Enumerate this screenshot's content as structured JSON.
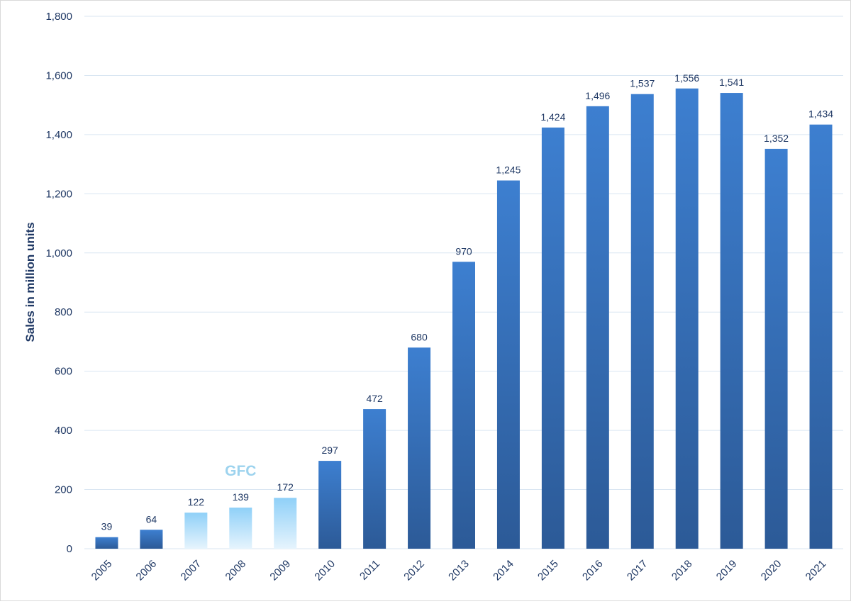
{
  "chart_data": {
    "type": "bar",
    "title": "",
    "xlabel": "",
    "ylabel": "Sales in million units",
    "categories": [
      "2005",
      "2006",
      "2007",
      "2008",
      "2009",
      "2010",
      "2011",
      "2012",
      "2013",
      "2014",
      "2015",
      "2016",
      "2017",
      "2018",
      "2019",
      "2020",
      "2021"
    ],
    "values": [
      39,
      64,
      122,
      139,
      172,
      297,
      472,
      680,
      970,
      1245,
      1424,
      1496,
      1537,
      1556,
      1541,
      1352,
      1434
    ],
    "value_labels": [
      "39",
      "64",
      "122",
      "139",
      "172",
      "297",
      "472",
      "680",
      "970",
      "1,245",
      "1,424",
      "1,496",
      "1,537",
      "1,556",
      "1,541",
      "1,352",
      "1,434"
    ],
    "ylim": [
      0,
      1800
    ],
    "y_ticks": [
      0,
      200,
      400,
      600,
      800,
      1000,
      1200,
      1400,
      1600,
      1800
    ],
    "y_tick_labels": [
      "0",
      "200",
      "400",
      "600",
      "800",
      "1,000",
      "1,200",
      "1,400",
      "1,600",
      "1,800"
    ],
    "grid": true,
    "legend": "none",
    "highlighted_categories": [
      "2007",
      "2008",
      "2009"
    ],
    "annotations": [
      {
        "text": "GFC",
        "category": "2008"
      }
    ],
    "colors": {
      "bar_top": "#3d7fd0",
      "bar_bottom": "#2c5a97",
      "highlight_top": "#8fd0f8",
      "highlight_bottom": "#e6f4fd",
      "text": "#1f3864",
      "annotation": "#9dd3ee",
      "grid": "#d9e6f2"
    }
  }
}
